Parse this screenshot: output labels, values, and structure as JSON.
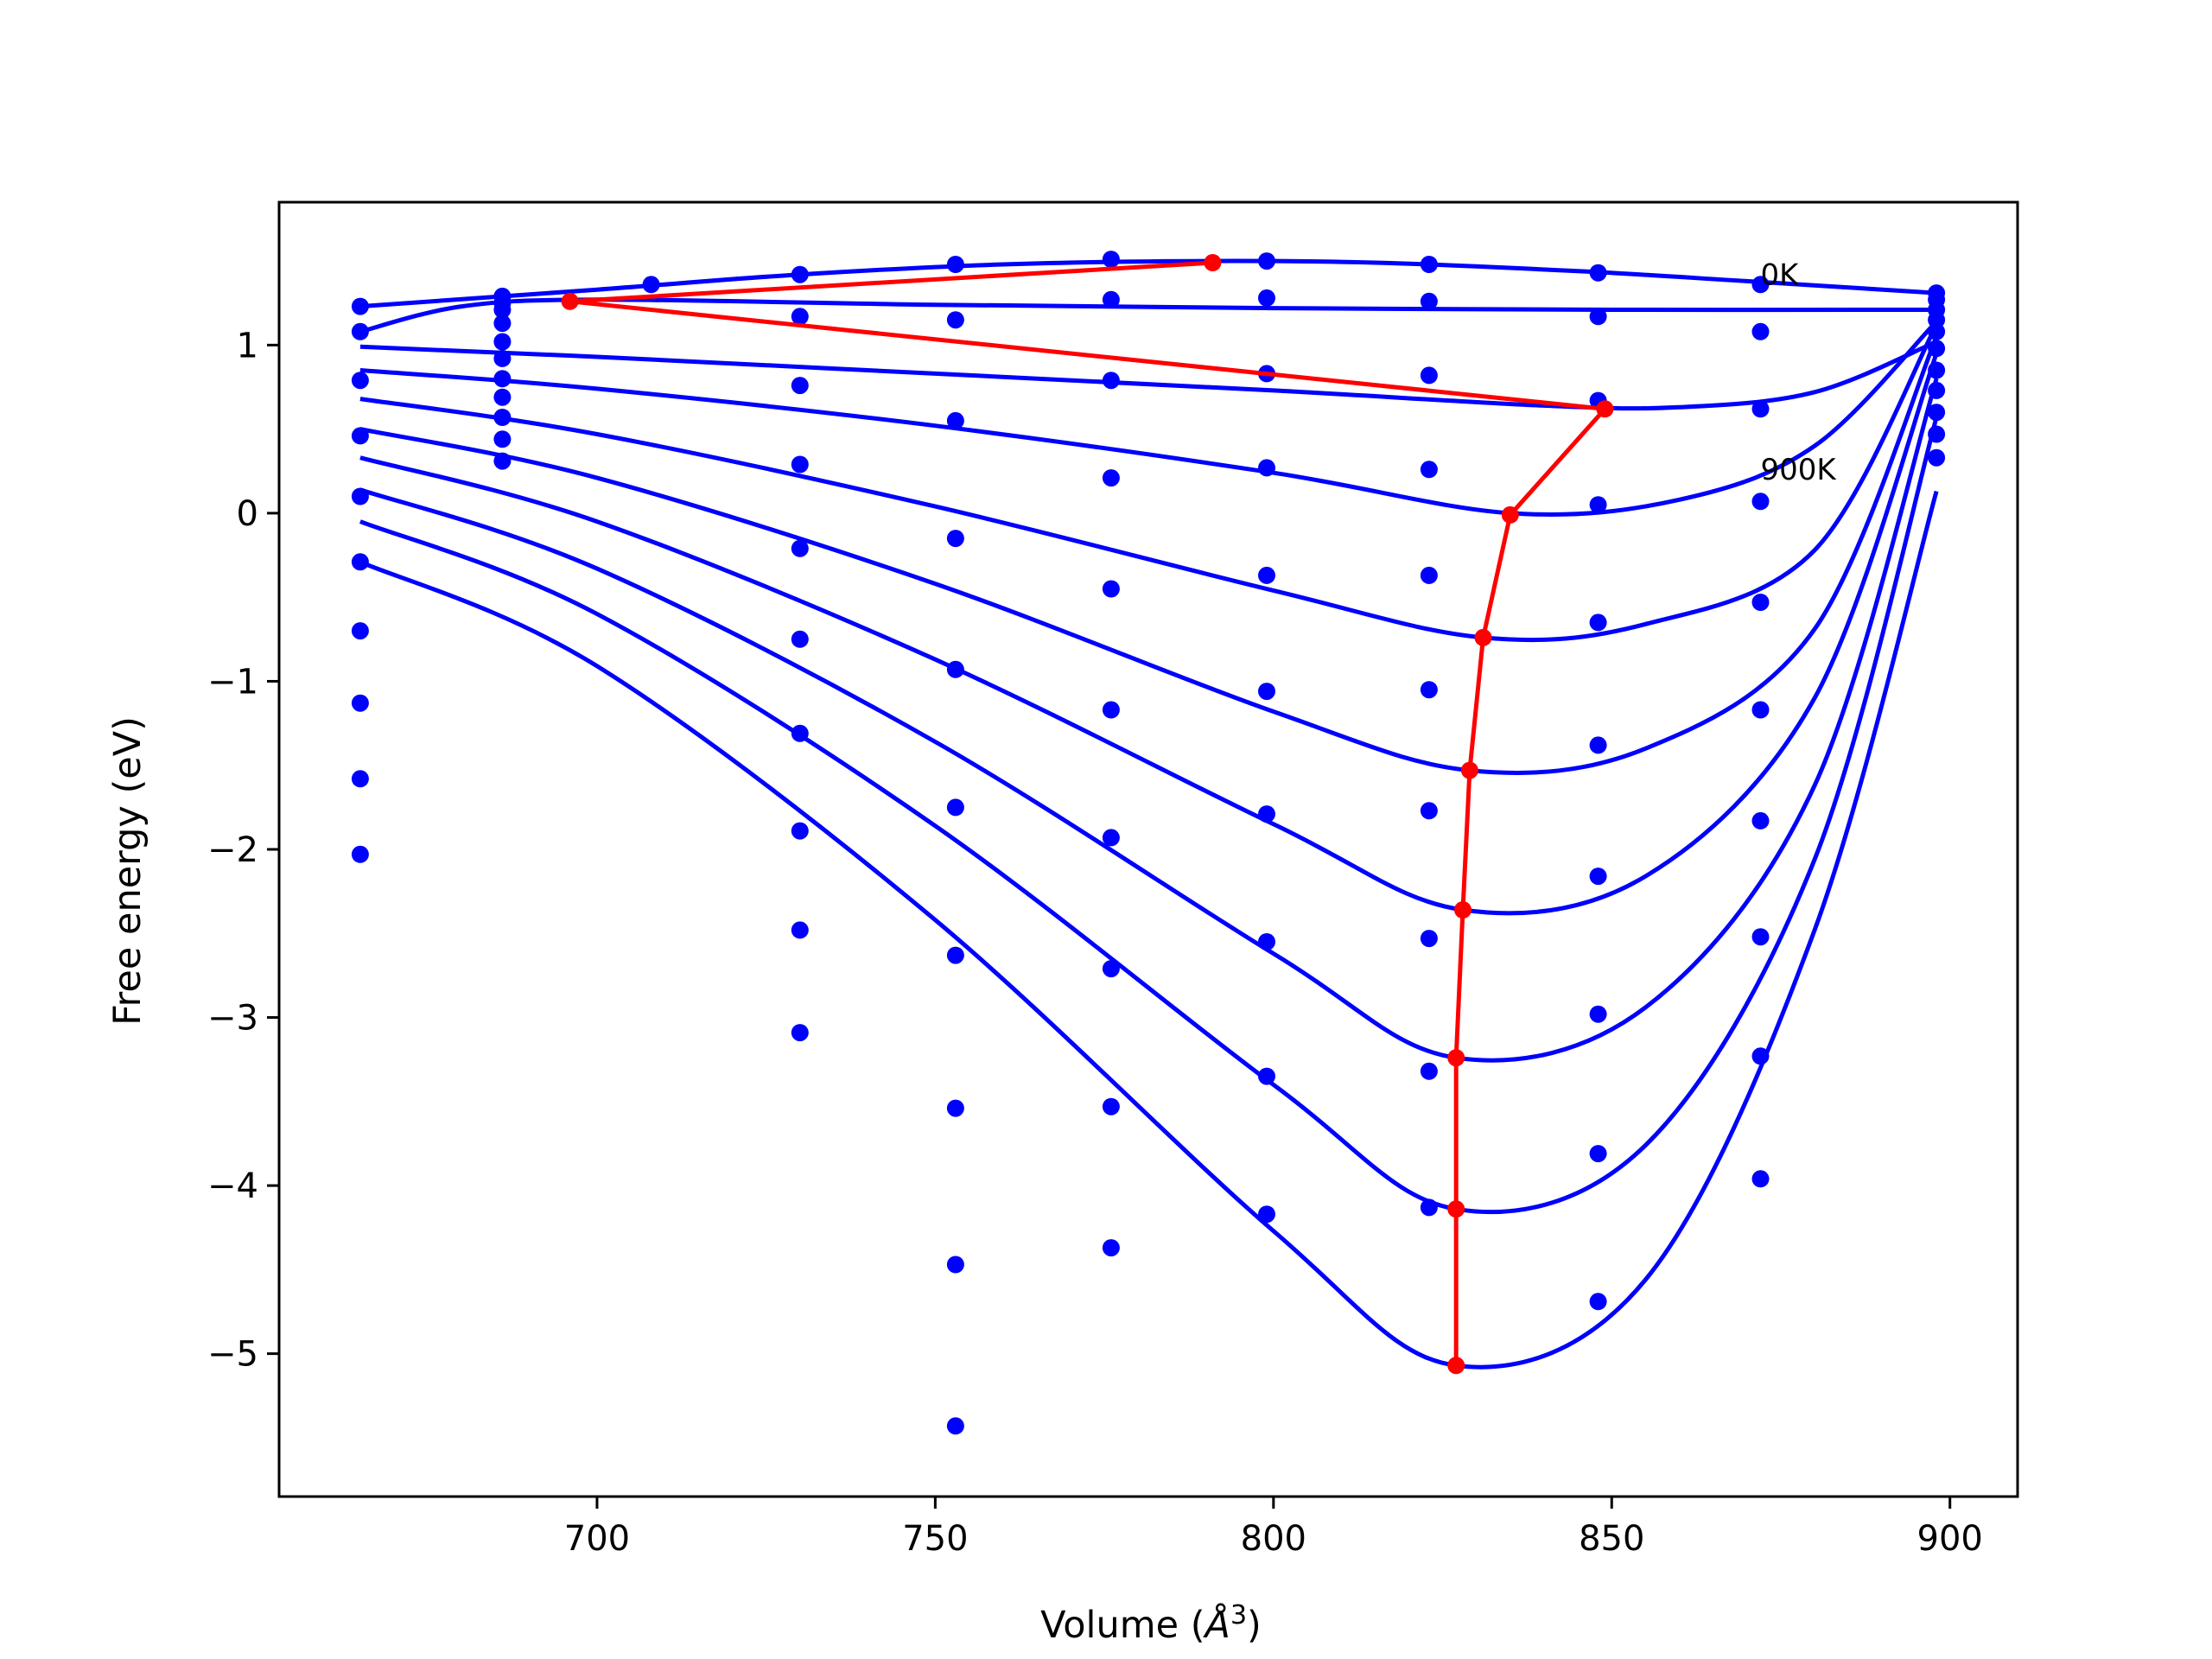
{
  "chart_data": {
    "type": "scatter",
    "xlabel_prefix": "Volume (",
    "xlabel_sym": "Å",
    "xlabel_sup": "3",
    "xlabel_suffix": ")",
    "ylabel": "Free energy (eV)",
    "xlim": [
      653,
      910
    ],
    "ylim": [
      -5.85,
      1.85
    ],
    "xticks": [
      700,
      750,
      800,
      850,
      900
    ],
    "xtick_labels": [
      "700",
      "750",
      "800",
      "850",
      "900"
    ],
    "yticks": [
      1,
      0,
      -1,
      -2,
      -3,
      -4,
      -5
    ],
    "ytick_labels": [
      "1",
      "0",
      "−1",
      "−2",
      "−3",
      "−4",
      "−5"
    ],
    "grid": false,
    "colors": {
      "points": "#0000ff",
      "curves": "#0000ff",
      "min_path": "#ff0000"
    },
    "annotations": [
      {
        "text": "0K",
        "x": 872,
        "y": 1.36
      },
      {
        "text": "900K",
        "x": 872,
        "y": 0.2
      }
    ],
    "points": [
      [
        665,
        1.23
      ],
      [
        665,
        1.08
      ],
      [
        665,
        0.79
      ],
      [
        665,
        0.46
      ],
      [
        665,
        0.1
      ],
      [
        665,
        -0.29
      ],
      [
        665,
        -0.7
      ],
      [
        665,
        -1.13
      ],
      [
        665,
        -1.58
      ],
      [
        665,
        -2.03
      ],
      [
        686,
        1.29
      ],
      [
        686,
        1.25
      ],
      [
        686,
        1.21
      ],
      [
        686,
        1.13
      ],
      [
        686,
        1.02
      ],
      [
        686,
        0.92
      ],
      [
        686,
        0.8
      ],
      [
        686,
        0.69
      ],
      [
        686,
        0.57
      ],
      [
        686,
        0.44
      ],
      [
        686,
        0.31
      ],
      [
        708,
        1.36
      ],
      [
        730,
        1.42
      ],
      [
        730,
        1.17
      ],
      [
        730,
        0.76
      ],
      [
        730,
        0.29
      ],
      [
        730,
        -0.21
      ],
      [
        730,
        -0.75
      ],
      [
        730,
        -1.31
      ],
      [
        730,
        -1.89
      ],
      [
        730,
        -2.48
      ],
      [
        730,
        -3.09
      ],
      [
        753,
        1.48
      ],
      [
        753,
        1.15
      ],
      [
        753,
        0.55
      ],
      [
        753,
        -0.15
      ],
      [
        753,
        -0.93
      ],
      [
        753,
        -1.75
      ],
      [
        753,
        -2.63
      ],
      [
        753,
        -3.54
      ],
      [
        753,
        -4.47
      ],
      [
        753,
        -5.43
      ],
      [
        776,
        1.51
      ],
      [
        776,
        1.27
      ],
      [
        776,
        0.79
      ],
      [
        776,
        0.21
      ],
      [
        776,
        -0.45
      ],
      [
        776,
        -1.17
      ],
      [
        776,
        -1.93
      ],
      [
        776,
        -2.71
      ],
      [
        776,
        -3.53
      ],
      [
        776,
        -4.37
      ],
      [
        799,
        1.5
      ],
      [
        799,
        1.28
      ],
      [
        799,
        0.83
      ],
      [
        799,
        0.27
      ],
      [
        799,
        -0.37
      ],
      [
        799,
        -1.06
      ],
      [
        799,
        -1.79
      ],
      [
        799,
        -2.55
      ],
      [
        799,
        -3.35
      ],
      [
        799,
        -4.17
      ],
      [
        823,
        1.48
      ],
      [
        823,
        1.26
      ],
      [
        823,
        0.82
      ],
      [
        823,
        0.26
      ],
      [
        823,
        -0.37
      ],
      [
        823,
        -1.05
      ],
      [
        823,
        -1.77
      ],
      [
        823,
        -2.53
      ],
      [
        823,
        -3.32
      ],
      [
        823,
        -4.13
      ],
      [
        848,
        1.43
      ],
      [
        848,
        1.17
      ],
      [
        848,
        0.67
      ],
      [
        848,
        0.05
      ],
      [
        848,
        -0.65
      ],
      [
        848,
        -1.38
      ],
      [
        848,
        -2.16
      ],
      [
        848,
        -2.98
      ],
      [
        848,
        -3.81
      ],
      [
        848,
        -4.69
      ],
      [
        872,
        1.36
      ],
      [
        872,
        1.08
      ],
      [
        872,
        0.62
      ],
      [
        872,
        0.07
      ],
      [
        872,
        -0.53
      ],
      [
        872,
        -1.17
      ],
      [
        872,
        -1.83
      ],
      [
        872,
        -2.52
      ],
      [
        872,
        -3.23
      ],
      [
        872,
        -3.96
      ],
      [
        898,
        1.31
      ],
      [
        898,
        1.27
      ],
      [
        898,
        1.21
      ],
      [
        898,
        1.15
      ],
      [
        898,
        1.08
      ],
      [
        898,
        0.98
      ],
      [
        898,
        0.85
      ],
      [
        898,
        0.73
      ],
      [
        898,
        0.6
      ],
      [
        898,
        0.47
      ],
      [
        898,
        0.33
      ]
    ],
    "series": [
      {
        "x": [
          665,
          700,
          730,
          760,
          790,
          815,
          845,
          870,
          898
        ],
        "y": [
          1.23,
          1.33,
          1.42,
          1.48,
          1.5,
          1.49,
          1.44,
          1.38,
          1.31
        ]
      },
      {
        "x": [
          665,
          680,
          700,
          750,
          800,
          850,
          898
        ],
        "y": [
          1.08,
          1.23,
          1.27,
          1.24,
          1.22,
          1.21,
          1.21
        ]
      },
      {
        "x": [
          665,
          700,
          750,
          800,
          840,
          860,
          880,
          898
        ],
        "y": [
          0.99,
          0.93,
          0.83,
          0.73,
          0.64,
          0.63,
          0.72,
          1.02
        ]
      },
      {
        "x": [
          665,
          700,
          750,
          800,
          835,
          860,
          880,
          898
        ],
        "y": [
          0.85,
          0.74,
          0.52,
          0.24,
          0.0,
          0.08,
          0.4,
          1.14
        ]
      },
      {
        "x": [
          665,
          700,
          750,
          800,
          831,
          855,
          880,
          898
        ],
        "y": [
          0.68,
          0.47,
          0.04,
          -0.46,
          -0.74,
          -0.66,
          -0.22,
          1.12
        ]
      },
      {
        "x": [
          665,
          700,
          750,
          800,
          829,
          855,
          880,
          898
        ],
        "y": [
          0.5,
          0.21,
          -0.42,
          -1.18,
          -1.53,
          -1.4,
          -0.69,
          1.05
        ]
      },
      {
        "x": [
          665,
          700,
          750,
          800,
          828,
          855,
          880,
          898
        ],
        "y": [
          0.33,
          -0.05,
          -0.87,
          -1.85,
          -2.36,
          -2.16,
          -1.1,
          0.95
        ]
      },
      {
        "x": [
          665,
          700,
          750,
          800,
          827,
          855,
          880,
          898
        ],
        "y": [
          0.14,
          -0.33,
          -1.36,
          -2.62,
          -3.24,
          -2.94,
          -1.62,
          0.8
        ]
      },
      {
        "x": [
          665,
          700,
          750,
          800,
          827,
          855,
          880,
          898
        ],
        "y": [
          -0.05,
          -0.6,
          -1.86,
          -3.4,
          -4.14,
          -3.76,
          -2.06,
          0.57
        ]
      },
      {
        "x": [
          665,
          700,
          750,
          800,
          827,
          855,
          880,
          898
        ],
        "y": [
          -0.29,
          -0.91,
          -2.42,
          -4.27,
          -5.07,
          -4.56,
          -2.48,
          0.13
        ]
      }
    ],
    "min_path": {
      "x": [
        791,
        696,
        849,
        835,
        831,
        829,
        828,
        827,
        827,
        827
      ],
      "y": [
        1.49,
        1.26,
        0.62,
        -0.01,
        -0.74,
        -1.53,
        -2.36,
        -3.24,
        -4.14,
        -5.07
      ]
    }
  }
}
